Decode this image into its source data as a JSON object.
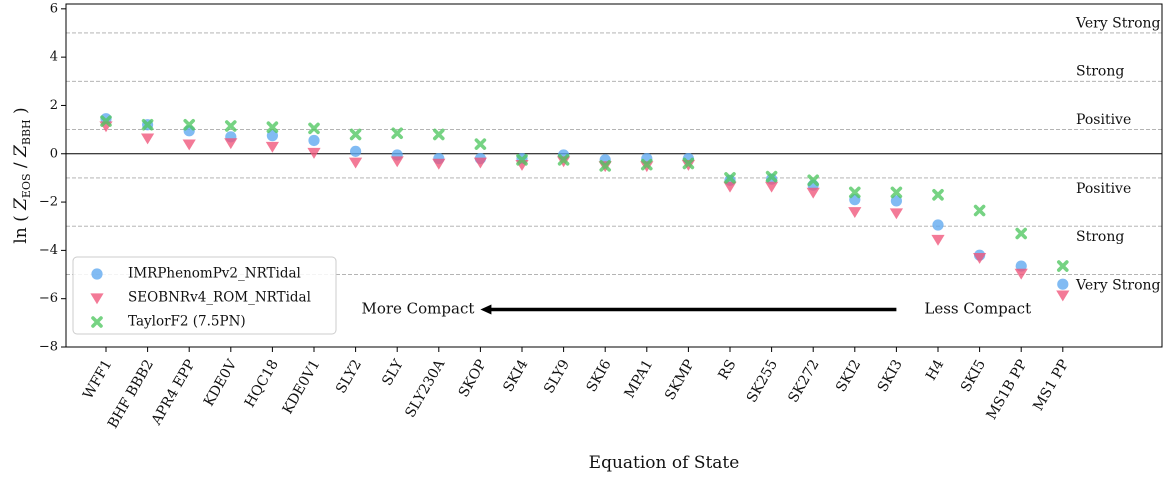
{
  "chart_data": {
    "type": "scatter",
    "xlabel": "Equation of State",
    "ylabel_parts": {
      "prefix": "ln ( ",
      "num": "Z",
      "num_sub": "EOS",
      "sep": " / ",
      "den": "Z",
      "den_sub": "BBH",
      "suffix": " )"
    },
    "ylim": [
      -8,
      6.2
    ],
    "yticks": [
      -8,
      -6,
      -4,
      -2,
      0,
      2,
      4,
      6
    ],
    "ytick_labels": [
      "−8",
      "−6",
      "−4",
      "−2",
      "0",
      "2",
      "4",
      "6"
    ],
    "grid": false,
    "legend_position": "lower-left",
    "categories": [
      "WFF1",
      "BHF BBB2",
      "APR4 EPP",
      "KDE0V",
      "HQC18",
      "KDE0V1",
      "SLY2",
      "SLY",
      "SLY230A",
      "SKOP",
      "SKI4",
      "SLY9",
      "SKI6",
      "MPA1",
      "SKMP",
      "RS",
      "SK255",
      "SK272",
      "SKI2",
      "SKI3",
      "H4",
      "SKI5",
      "MS1B PP",
      "MS1 PP"
    ],
    "series": [
      {
        "name": "IMRPhenomPv2_NRTidal",
        "marker": "circle",
        "color": "#5da8f0",
        "values": [
          1.45,
          1.2,
          0.95,
          0.7,
          0.75,
          0.55,
          0.1,
          -0.05,
          -0.2,
          -0.2,
          -0.2,
          -0.05,
          -0.25,
          -0.2,
          -0.2,
          -1.1,
          -1.05,
          -1.3,
          -1.9,
          -1.95,
          -2.95,
          -4.2,
          -4.65,
          -5.4
        ]
      },
      {
        "name": "SEOBNRv4_ROM_NRTidal",
        "marker": "triangle-down",
        "color": "#f0557a",
        "values": [
          1.15,
          0.65,
          0.4,
          0.45,
          0.3,
          0.05,
          -0.35,
          -0.3,
          -0.4,
          -0.35,
          -0.45,
          -0.3,
          -0.5,
          -0.5,
          -0.45,
          -1.35,
          -1.35,
          -1.6,
          -2.4,
          -2.45,
          -3.55,
          -4.3,
          -4.95,
          -5.85
        ]
      },
      {
        "name": "TaylorF2 (7.5PN)",
        "marker": "x",
        "color": "#4fc760",
        "values": [
          1.35,
          1.2,
          1.2,
          1.15,
          1.1,
          1.05,
          0.8,
          0.85,
          0.8,
          0.4,
          -0.25,
          -0.25,
          -0.5,
          -0.45,
          -0.4,
          -1.0,
          -0.95,
          -1.1,
          -1.6,
          -1.6,
          -1.7,
          -2.35,
          -3.3,
          -4.65
        ]
      }
    ],
    "hlines": [
      {
        "y": 5,
        "style": "dashed"
      },
      {
        "y": 3,
        "style": "dashed"
      },
      {
        "y": 1,
        "style": "dashed"
      },
      {
        "y": 0,
        "style": "solid"
      },
      {
        "y": -1,
        "style": "dashed"
      },
      {
        "y": -3,
        "style": "dashed"
      },
      {
        "y": -5,
        "style": "dashed"
      }
    ],
    "band_labels": [
      {
        "text": "Very Strong",
        "y": 5.4
      },
      {
        "text": "Strong",
        "y": 3.4
      },
      {
        "text": "Positive",
        "y": 1.4
      },
      {
        "text": "Positive",
        "y": -1.45
      },
      {
        "text": "Strong",
        "y": -3.45
      },
      {
        "text": "Very Strong",
        "y": -5.45
      }
    ],
    "annotations": {
      "left_text": "More Compact",
      "right_text": "Less Compact",
      "arrow_from_category": 19,
      "arrow_to_category": 9,
      "arrow_y": -6.45
    }
  }
}
